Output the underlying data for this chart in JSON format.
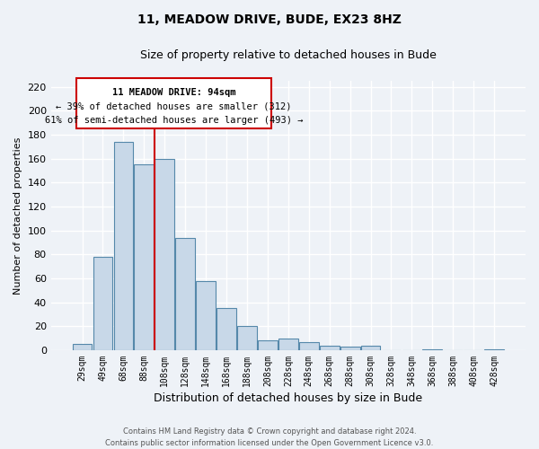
{
  "title": "11, MEADOW DRIVE, BUDE, EX23 8HZ",
  "subtitle": "Size of property relative to detached houses in Bude",
  "xlabel": "Distribution of detached houses by size in Bude",
  "ylabel": "Number of detached properties",
  "bar_labels": [
    "29sqm",
    "49sqm",
    "68sqm",
    "88sqm",
    "108sqm",
    "128sqm",
    "148sqm",
    "168sqm",
    "188sqm",
    "208sqm",
    "228sqm",
    "248sqm",
    "268sqm",
    "288sqm",
    "308sqm",
    "328sqm",
    "348sqm",
    "368sqm",
    "388sqm",
    "408sqm",
    "428sqm"
  ],
  "bar_values": [
    5,
    78,
    174,
    155,
    160,
    94,
    58,
    35,
    20,
    8,
    10,
    7,
    4,
    3,
    4,
    0,
    0,
    1,
    0,
    0,
    1
  ],
  "bar_color": "#c8d8e8",
  "bar_edge_color": "#5588aa",
  "vline_x_idx": 3,
  "vline_color": "#cc0000",
  "annotation_title": "11 MEADOW DRIVE: 94sqm",
  "annotation_line1": "← 39% of detached houses are smaller (312)",
  "annotation_line2": "61% of semi-detached houses are larger (493) →",
  "annotation_box_color": "#cc0000",
  "ylim": [
    0,
    225
  ],
  "yticks": [
    0,
    20,
    40,
    60,
    80,
    100,
    120,
    140,
    160,
    180,
    200,
    220
  ],
  "footer_line1": "Contains HM Land Registry data © Crown copyright and database right 2024.",
  "footer_line2": "Contains public sector information licensed under the Open Government Licence v3.0.",
  "bg_color": "#eef2f7",
  "grid_color": "#ffffff"
}
